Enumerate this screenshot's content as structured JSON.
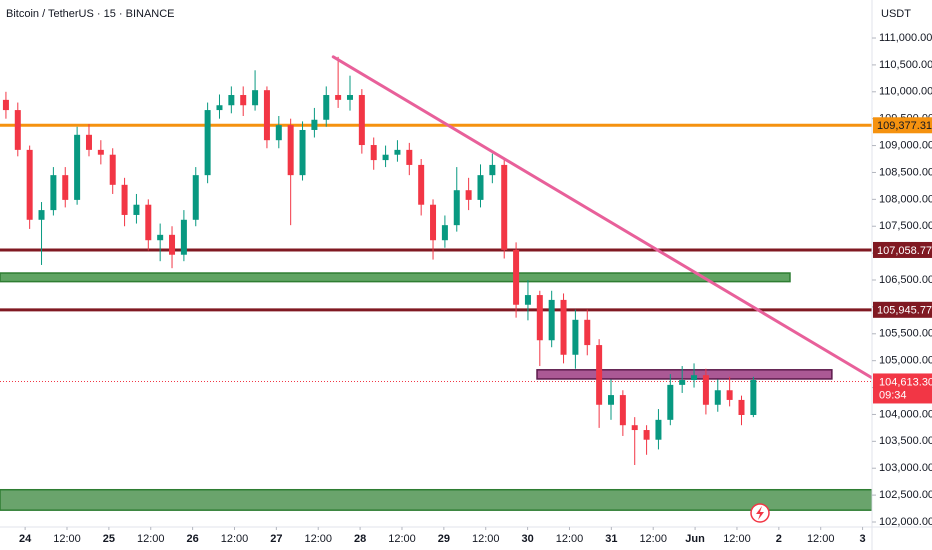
{
  "chart_data": {
    "type": "candlestick",
    "title": "Bitcoin / TetherUS · 15 · BINANCE",
    "unit": "USDT",
    "up_color": "#089981",
    "down_color": "#f23645",
    "x": [
      -5.5,
      -2.1,
      1.3,
      4.7,
      8.1,
      11.5,
      14.9,
      18.3,
      21.7,
      25.1,
      28.5,
      31.9,
      35.3,
      38.7,
      42.1,
      45.5,
      48.9,
      52.3,
      55.7,
      59.1,
      62.5,
      65.9,
      69.3,
      72.7,
      76.1,
      79.5,
      82.9,
      86.3,
      89.7,
      93.1,
      96.5,
      99.9,
      103.3,
      106.7,
      110.1,
      113.5,
      116.9,
      120.3,
      123.7,
      127.1,
      130.5,
      133.9,
      137.3,
      140.7,
      144.1,
      147.5,
      150.9,
      154.3,
      157.7,
      161.1,
      164.5,
      167.9,
      171.3,
      174.7,
      178.1,
      181.5,
      184.9,
      188.3,
      191.7,
      195.1,
      198.5,
      201.9,
      205.3,
      208.7
    ],
    "open": [
      109850,
      109660,
      108920,
      107620,
      107800,
      108450,
      107990,
      109200,
      108920,
      108830,
      108270,
      107710,
      107900,
      107240,
      107340,
      106970,
      107620,
      108450,
      109660,
      109750,
      109940,
      109750,
      110030,
      109100,
      109380,
      108450,
      109290,
      109480,
      109940,
      109850,
      109940,
      109010,
      108730,
      108830,
      108920,
      108640,
      107900,
      107240,
      107520,
      108170,
      107990,
      108450,
      108640,
      107060,
      106040,
      106220,
      105380,
      106130,
      105110,
      105760,
      105290,
      104180,
      104360,
      103800,
      103710,
      103530,
      103900,
      104550,
      104640,
      104730,
      104180,
      104450,
      104270,
      103990
    ],
    "high": [
      110000,
      109800,
      109000,
      107950,
      108600,
      108600,
      109350,
      109400,
      109100,
      108950,
      108400,
      108100,
      108000,
      107550,
      107500,
      107800,
      108600,
      109800,
      109950,
      110100,
      110100,
      110400,
      110100,
      109550,
      109500,
      109450,
      109700,
      110100,
      110650,
      110300,
      110050,
      109150,
      109000,
      109100,
      109050,
      108750,
      108000,
      107700,
      108600,
      108400,
      108650,
      108850,
      108750,
      107200,
      106500,
      106300,
      106300,
      106250,
      105950,
      105950,
      105400,
      104650,
      104450,
      103950,
      103800,
      104100,
      104750,
      104900,
      104950,
      104850,
      104650,
      104700,
      104350,
      104700
    ],
    "low": [
      109500,
      108800,
      107450,
      106780,
      107700,
      107850,
      107900,
      108800,
      108650,
      108100,
      107500,
      107550,
      107050,
      106850,
      106720,
      106850,
      107500,
      108300,
      109500,
      109600,
      109550,
      109650,
      108950,
      108950,
      107520,
      108350,
      109150,
      109350,
      109700,
      109650,
      108850,
      108550,
      108600,
      108700,
      108450,
      107700,
      106880,
      107100,
      107400,
      107800,
      107850,
      108300,
      106900,
      105800,
      105750,
      104900,
      105250,
      104950,
      104850,
      105100,
      103750,
      103900,
      103600,
      103060,
      103250,
      103350,
      103800,
      104400,
      104500,
      104000,
      104050,
      104150,
      103800,
      103950
    ],
    "close": [
      109660,
      108920,
      107620,
      107800,
      108450,
      107990,
      109200,
      108920,
      108830,
      108270,
      107710,
      107900,
      107240,
      107340,
      106970,
      107620,
      108450,
      109660,
      109750,
      109940,
      109750,
      110030,
      109100,
      109380,
      108450,
      109290,
      109480,
      109940,
      109850,
      109940,
      109010,
      108730,
      108830,
      108920,
      108640,
      107900,
      107240,
      107520,
      108170,
      107990,
      108450,
      108640,
      107060,
      106040,
      106220,
      105380,
      106130,
      105110,
      105760,
      105290,
      104180,
      104360,
      103800,
      103710,
      103530,
      103900,
      104550,
      104640,
      104730,
      104180,
      104450,
      104270,
      103990,
      104640
    ],
    "xlim": [
      -7.2,
      242.7
    ],
    "xticks": [
      {
        "value": 0,
        "label": "24"
      },
      {
        "value": 12,
        "label": "12:00"
      },
      {
        "value": 24,
        "label": "25"
      },
      {
        "value": 36,
        "label": "12:00"
      },
      {
        "value": 48,
        "label": "26"
      },
      {
        "value": 60,
        "label": "12:00"
      },
      {
        "value": 72,
        "label": "27"
      },
      {
        "value": 84,
        "label": "12:00"
      },
      {
        "value": 96,
        "label": "28"
      },
      {
        "value": 108,
        "label": "12:00"
      },
      {
        "value": 120,
        "label": "29"
      },
      {
        "value": 132,
        "label": "12:00"
      },
      {
        "value": 144,
        "label": "30"
      },
      {
        "value": 156,
        "label": "12:00"
      },
      {
        "value": 168,
        "label": "31"
      },
      {
        "value": 180,
        "label": "12:00"
      },
      {
        "value": 192,
        "label": "Jun"
      },
      {
        "value": 204,
        "label": "12:00"
      },
      {
        "value": 216,
        "label": "2"
      },
      {
        "value": 228,
        "label": "12:00"
      },
      {
        "value": 240,
        "label": "3"
      }
    ],
    "ylim": [
      101907,
      111707
    ],
    "yticks": [
      {
        "value": 102000,
        "label": "102,000.00"
      },
      {
        "value": 102500,
        "label": "102,500.00"
      },
      {
        "value": 103000,
        "label": "103,000.00"
      },
      {
        "value": 103500,
        "label": "103,500.00"
      },
      {
        "value": 104000,
        "label": "104,000.00"
      },
      {
        "value": 104500,
        "label": "104,500.00"
      },
      {
        "value": 105000,
        "label": "105,000.00"
      },
      {
        "value": 105500,
        "label": "105,500.00"
      },
      {
        "value": 106000,
        "label": "106,000.00"
      },
      {
        "value": 106500,
        "label": "106,500.00"
      },
      {
        "value": 107000,
        "label": "107,000.00"
      },
      {
        "value": 107500,
        "label": "107,500.00"
      },
      {
        "value": 108000,
        "label": "108,000.00"
      },
      {
        "value": 108500,
        "label": "108,500.00"
      },
      {
        "value": 109000,
        "label": "109,000.00"
      },
      {
        "value": 109500,
        "label": "109,500.00"
      },
      {
        "value": 110000,
        "label": "110,000.00"
      },
      {
        "value": 110500,
        "label": "110,500.00"
      },
      {
        "value": 111000,
        "label": "111,000.00"
      }
    ],
    "zones": [
      {
        "x": [
          -7.2,
          219.2
        ],
        "y": [
          106470,
          106630
        ],
        "color": "#4f9a52",
        "border": "#2e7d32"
      },
      {
        "x": [
          146.7,
          231.2
        ],
        "y": [
          104660,
          104830
        ],
        "color": "#a2478a",
        "border": "#5c1a4c"
      },
      {
        "x": [
          -7.2,
          242.7
        ],
        "y": [
          102220,
          102600
        ],
        "color": "#5a9a5c",
        "border": "#2e7d32"
      }
    ],
    "levels": [
      {
        "value": 109377.31,
        "label": "109,377.31",
        "color": "#f5920f"
      },
      {
        "value": 107058.77,
        "label": "107,058.77",
        "color": "#801922"
      },
      {
        "value": 105945.77,
        "label": "105,945.77",
        "color": "#801922"
      }
    ],
    "trendline": {
      "x": [
        88.3,
        242.7
      ],
      "y": [
        110650,
        104680
      ],
      "color": "#e8609a"
    },
    "current": {
      "value": 104613.3,
      "label": "104,613.30",
      "countdown": "09:34",
      "color": "#f23645"
    }
  }
}
